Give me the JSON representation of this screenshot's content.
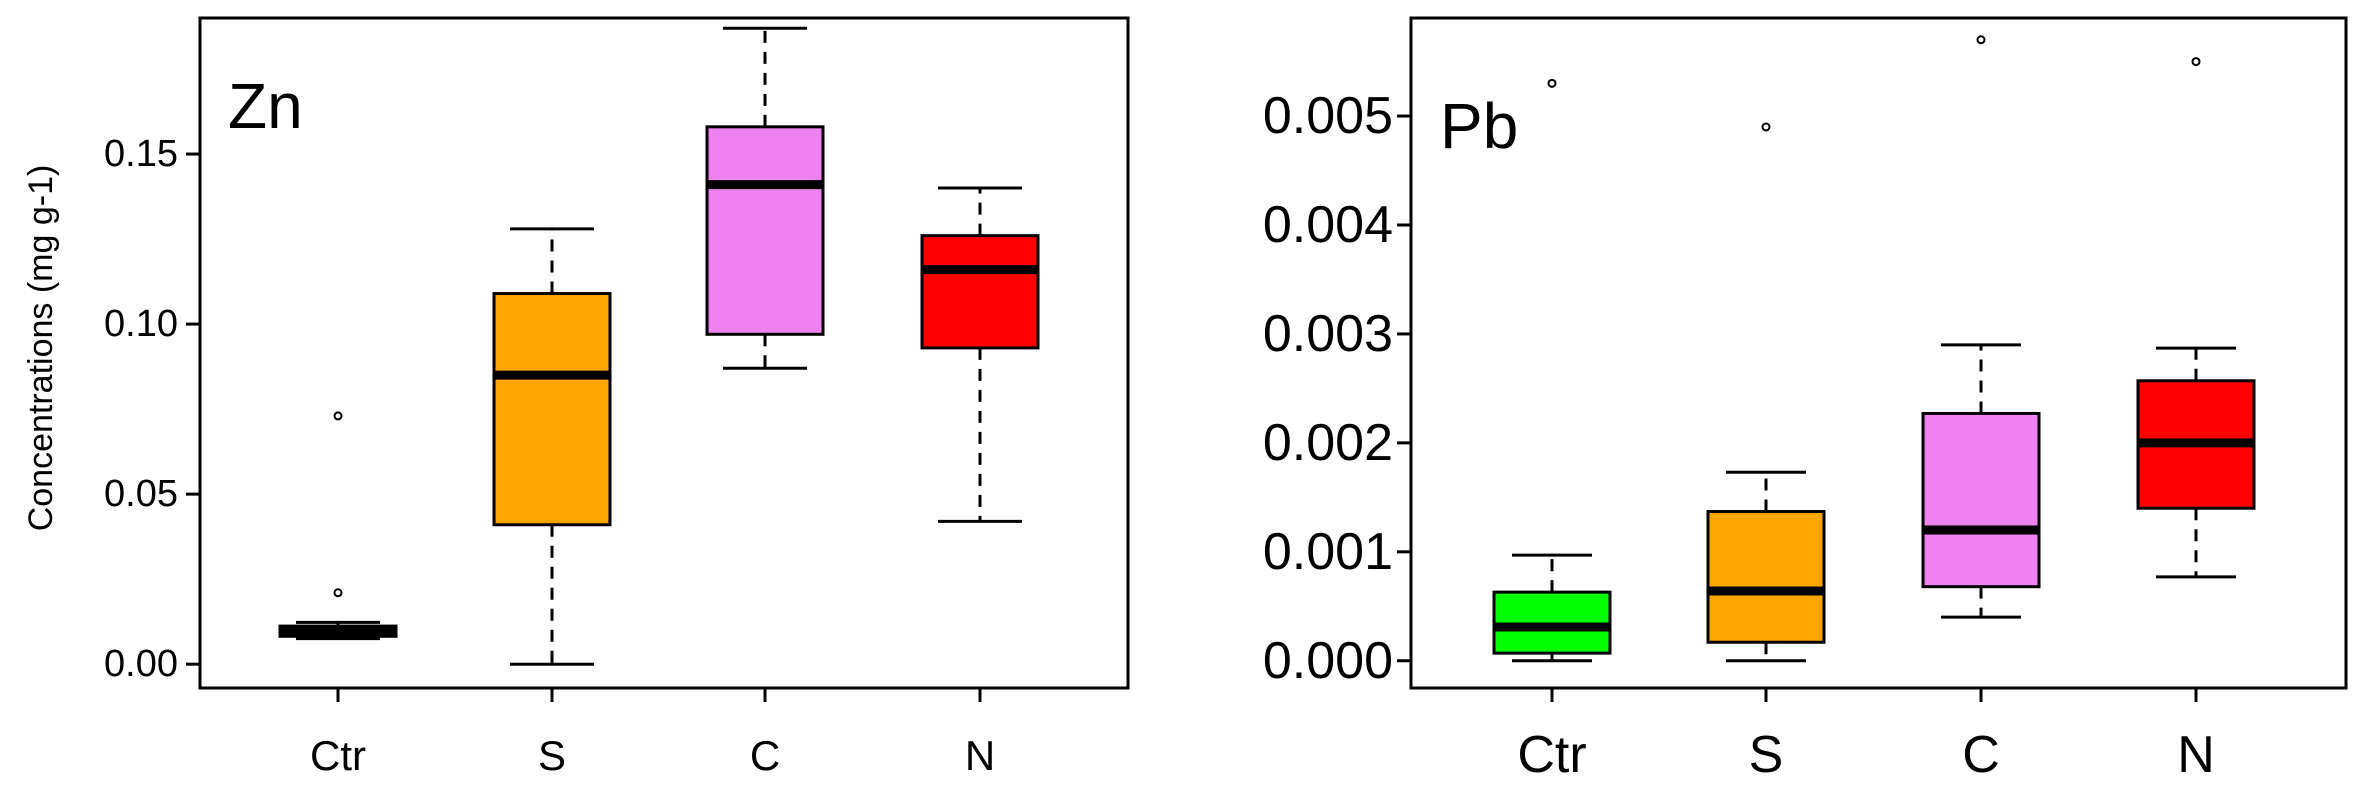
{
  "chart_data": [
    {
      "type": "box",
      "title": "Zn",
      "ylabel": "Concentrations (mg g-1)",
      "xlabel": "",
      "ylim": [
        -0.007,
        0.19
      ],
      "yticks": [
        "0.00",
        "0.05",
        "0.10",
        "0.15"
      ],
      "categories": [
        "Ctr",
        "S",
        "C",
        "N"
      ],
      "colors": [
        "#000000",
        "#FFA500",
        "#EE82EE",
        "#FF0000"
      ],
      "boxes": [
        {
          "category": "Ctr",
          "min": 0.0075,
          "q1": 0.0082,
          "median": 0.0092,
          "q3": 0.0112,
          "max": 0.0123,
          "outliers": [
            0.021,
            0.073
          ]
        },
        {
          "category": "S",
          "min": 0.0,
          "q1": 0.041,
          "median": 0.085,
          "q3": 0.109,
          "max": 0.128,
          "outliers": []
        },
        {
          "category": "C",
          "min": 0.087,
          "q1": 0.097,
          "median": 0.141,
          "q3": 0.158,
          "max": 0.187,
          "outliers": []
        },
        {
          "category": "N",
          "min": 0.042,
          "q1": 0.093,
          "median": 0.116,
          "q3": 0.126,
          "max": 0.14,
          "outliers": []
        }
      ]
    },
    {
      "type": "box",
      "title": "Pb",
      "ylabel": "",
      "xlabel": "",
      "ylim": [
        -0.00025,
        0.0059
      ],
      "yticks": [
        "0.000",
        "0.001",
        "0.002",
        "0.003",
        "0.004",
        "0.005"
      ],
      "categories": [
        "Ctr",
        "S",
        "C",
        "N"
      ],
      "colors": [
        "#00FF00",
        "#FFA500",
        "#EE82EE",
        "#FF0000"
      ],
      "boxes": [
        {
          "category": "Ctr",
          "min": 0.0,
          "q1": 7e-05,
          "median": 0.00031,
          "q3": 0.00063,
          "max": 0.00097,
          "outliers": [
            0.0053
          ]
        },
        {
          "category": "S",
          "min": 0.0,
          "q1": 0.00017,
          "median": 0.00064,
          "q3": 0.00137,
          "max": 0.00173,
          "outliers": [
            0.0049
          ]
        },
        {
          "category": "C",
          "min": 0.0004,
          "q1": 0.00068,
          "median": 0.0012,
          "q3": 0.00227,
          "max": 0.0029,
          "outliers": [
            0.0057
          ]
        },
        {
          "category": "N",
          "min": 0.00077,
          "q1": 0.0014,
          "median": 0.002,
          "q3": 0.00257,
          "max": 0.00287,
          "outliers": [
            0.0055
          ]
        }
      ]
    }
  ]
}
